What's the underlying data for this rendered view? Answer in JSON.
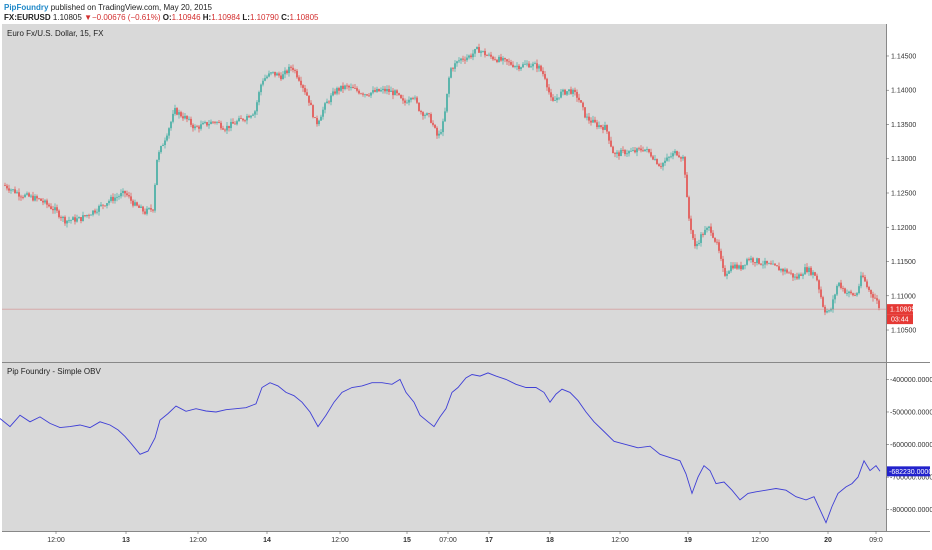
{
  "header": {
    "author": "PipFoundry",
    "published_text": "published on TradingView.com, May 20, 2015",
    "symbol": "FX:EURUSD",
    "last": "1.10805",
    "change_arrow": "▼",
    "change": "−0.00676 (−0.61%)",
    "o_label": "O:",
    "o_value": "1.10946",
    "h_label": "H:",
    "h_value": "1.10984",
    "l_label": "L:",
    "l_value": "1.10790",
    "c_label": "C:",
    "c_value": "1.10805"
  },
  "colors": {
    "pane_bg": "#d9d9d9",
    "up_candle": "#26a69a",
    "down_candle": "#e53935",
    "obv_line": "#3f3fd6",
    "price_tag": "#e53935",
    "obv_tag": "#2222cc"
  },
  "chart_data": [
    {
      "type": "candlestick",
      "title": "Euro Fx/U.S. Dollar, 15, FX",
      "ylim": [
        1.1015,
        1.1485
      ],
      "y_ticks": [
        "1.14500",
        "1.14000",
        "1.13500",
        "1.13000",
        "1.12500",
        "1.12000",
        "1.11500",
        "1.11000",
        "1.10500"
      ],
      "x_ticks": [
        "12:00",
        "13",
        "12:00",
        "14",
        "12:00",
        "15",
        "07:00",
        "17",
        "18",
        "12:00",
        "19",
        "12:00",
        "20",
        "09:0"
      ],
      "last_price_label": "1.10805",
      "countdown_label": "03:44",
      "last_price": 1.10805,
      "close_path": [
        [
          0,
          1.1265
        ],
        [
          20,
          1.1248
        ],
        [
          40,
          1.124
        ],
        [
          55,
          1.1225
        ],
        [
          65,
          1.121
        ],
        [
          80,
          1.1212
        ],
        [
          95,
          1.1225
        ],
        [
          110,
          1.124
        ],
        [
          125,
          1.125
        ],
        [
          135,
          1.1232
        ],
        [
          145,
          1.1222
        ],
        [
          153,
          1.1228
        ],
        [
          157,
          1.13
        ],
        [
          165,
          1.133
        ],
        [
          175,
          1.137
        ],
        [
          185,
          1.136
        ],
        [
          195,
          1.1345
        ],
        [
          205,
          1.135
        ],
        [
          215,
          1.1355
        ],
        [
          225,
          1.1345
        ],
        [
          235,
          1.1352
        ],
        [
          245,
          1.136
        ],
        [
          255,
          1.137
        ],
        [
          262,
          1.1415
        ],
        [
          272,
          1.1425
        ],
        [
          282,
          1.142
        ],
        [
          292,
          1.1435
        ],
        [
          300,
          1.1415
        ],
        [
          308,
          1.139
        ],
        [
          316,
          1.135
        ],
        [
          326,
          1.138
        ],
        [
          336,
          1.14
        ],
        [
          346,
          1.1405
        ],
        [
          356,
          1.14
        ],
        [
          366,
          1.1395
        ],
        [
          376,
          1.1398
        ],
        [
          386,
          1.14
        ],
        [
          396,
          1.1395
        ],
        [
          404,
          1.138
        ],
        [
          412,
          1.1395
        ],
        [
          420,
          1.137
        ],
        [
          430,
          1.136
        ],
        [
          438,
          1.133
        ],
        [
          444,
          1.1355
        ],
        [
          450,
          1.143
        ],
        [
          460,
          1.1445
        ],
        [
          470,
          1.145
        ],
        [
          478,
          1.146
        ],
        [
          488,
          1.145
        ],
        [
          498,
          1.1445
        ],
        [
          508,
          1.144
        ],
        [
          518,
          1.1435
        ],
        [
          528,
          1.1438
        ],
        [
          538,
          1.1435
        ],
        [
          545,
          1.142
        ],
        [
          552,
          1.138
        ],
        [
          560,
          1.1395
        ],
        [
          570,
          1.14
        ],
        [
          578,
          1.139
        ],
        [
          586,
          1.136
        ],
        [
          596,
          1.135
        ],
        [
          606,
          1.1345
        ],
        [
          614,
          1.1305
        ],
        [
          624,
          1.131
        ],
        [
          634,
          1.131
        ],
        [
          644,
          1.1315
        ],
        [
          652,
          1.1305
        ],
        [
          660,
          1.129
        ],
        [
          668,
          1.13
        ],
        [
          676,
          1.131
        ],
        [
          684,
          1.13
        ],
        [
          688,
          1.122
        ],
        [
          695,
          1.117
        ],
        [
          702,
          1.119
        ],
        [
          710,
          1.12
        ],
        [
          718,
          1.117
        ],
        [
          724,
          1.113
        ],
        [
          732,
          1.1145
        ],
        [
          740,
          1.114
        ],
        [
          748,
          1.1155
        ],
        [
          758,
          1.115
        ],
        [
          768,
          1.1145
        ],
        [
          778,
          1.114
        ],
        [
          788,
          1.1135
        ],
        [
          796,
          1.1125
        ],
        [
          806,
          1.114
        ],
        [
          816,
          1.113
        ],
        [
          824,
          1.108
        ],
        [
          830,
          1.1075
        ],
        [
          838,
          1.112
        ],
        [
          846,
          1.1105
        ],
        [
          856,
          1.11
        ],
        [
          862,
          1.113
        ],
        [
          868,
          1.111
        ],
        [
          876,
          1.1095
        ],
        [
          880,
          1.10805
        ]
      ]
    },
    {
      "type": "line",
      "title": "Pip Foundry - Simple OBV",
      "ylim": [
        -850000,
        -365000
      ],
      "y_ticks": [
        "-400000.0000",
        "-500000.0000",
        "-600000.0000",
        "-700000.0000",
        "-800000.0000"
      ],
      "last_value_label": "-682230.0000",
      "last_value": -682230,
      "series": [
        {
          "points": [
            [
              0,
              -520000
            ],
            [
              10,
              -545000
            ],
            [
              20,
              -510000
            ],
            [
              30,
              -530000
            ],
            [
              40,
              -515000
            ],
            [
              50,
              -535000
            ],
            [
              60,
              -548000
            ],
            [
              70,
              -545000
            ],
            [
              80,
              -540000
            ],
            [
              90,
              -548000
            ],
            [
              100,
              -530000
            ],
            [
              110,
              -540000
            ],
            [
              118,
              -555000
            ],
            [
              125,
              -575000
            ],
            [
              132,
              -600000
            ],
            [
              140,
              -630000
            ],
            [
              148,
              -620000
            ],
            [
              155,
              -580000
            ],
            [
              160,
              -525000
            ],
            [
              168,
              -505000
            ],
            [
              176,
              -482000
            ],
            [
              186,
              -498000
            ],
            [
              196,
              -490000
            ],
            [
              206,
              -497000
            ],
            [
              216,
              -500000
            ],
            [
              226,
              -493000
            ],
            [
              236,
              -490000
            ],
            [
              246,
              -487000
            ],
            [
              256,
              -475000
            ],
            [
              262,
              -425000
            ],
            [
              270,
              -410000
            ],
            [
              278,
              -420000
            ],
            [
              286,
              -440000
            ],
            [
              294,
              -450000
            ],
            [
              302,
              -470000
            ],
            [
              310,
              -500000
            ],
            [
              318,
              -545000
            ],
            [
              326,
              -510000
            ],
            [
              334,
              -470000
            ],
            [
              342,
              -440000
            ],
            [
              352,
              -425000
            ],
            [
              362,
              -420000
            ],
            [
              372,
              -410000
            ],
            [
              382,
              -410000
            ],
            [
              392,
              -415000
            ],
            [
              400,
              -400000
            ],
            [
              406,
              -440000
            ],
            [
              414,
              -470000
            ],
            [
              420,
              -510000
            ],
            [
              428,
              -530000
            ],
            [
              434,
              -545000
            ],
            [
              440,
              -515000
            ],
            [
              446,
              -490000
            ],
            [
              452,
              -440000
            ],
            [
              458,
              -425000
            ],
            [
              466,
              -395000
            ],
            [
              472,
              -385000
            ],
            [
              480,
              -390000
            ],
            [
              488,
              -380000
            ],
            [
              496,
              -390000
            ],
            [
              506,
              -400000
            ],
            [
              516,
              -415000
            ],
            [
              526,
              -425000
            ],
            [
              536,
              -425000
            ],
            [
              544,
              -440000
            ],
            [
              550,
              -470000
            ],
            [
              556,
              -445000
            ],
            [
              562,
              -430000
            ],
            [
              570,
              -440000
            ],
            [
              578,
              -465000
            ],
            [
              586,
              -500000
            ],
            [
              594,
              -530000
            ],
            [
              604,
              -560000
            ],
            [
              614,
              -590000
            ],
            [
              626,
              -600000
            ],
            [
              638,
              -610000
            ],
            [
              650,
              -605000
            ],
            [
              660,
              -630000
            ],
            [
              670,
              -640000
            ],
            [
              680,
              -650000
            ],
            [
              686,
              -690000
            ],
            [
              692,
              -750000
            ],
            [
              698,
              -700000
            ],
            [
              704,
              -665000
            ],
            [
              710,
              -680000
            ],
            [
              716,
              -720000
            ],
            [
              724,
              -715000
            ],
            [
              732,
              -740000
            ],
            [
              740,
              -770000
            ],
            [
              748,
              -750000
            ],
            [
              756,
              -745000
            ],
            [
              766,
              -740000
            ],
            [
              776,
              -735000
            ],
            [
              786,
              -740000
            ],
            [
              796,
              -760000
            ],
            [
              806,
              -770000
            ],
            [
              814,
              -760000
            ],
            [
              820,
              -800000
            ],
            [
              826,
              -840000
            ],
            [
              832,
              -790000
            ],
            [
              838,
              -750000
            ],
            [
              846,
              -730000
            ],
            [
              852,
              -720000
            ],
            [
              858,
              -700000
            ],
            [
              864,
              -650000
            ],
            [
              870,
              -680000
            ],
            [
              876,
              -665000
            ],
            [
              880,
              -682230
            ]
          ]
        }
      ]
    }
  ]
}
